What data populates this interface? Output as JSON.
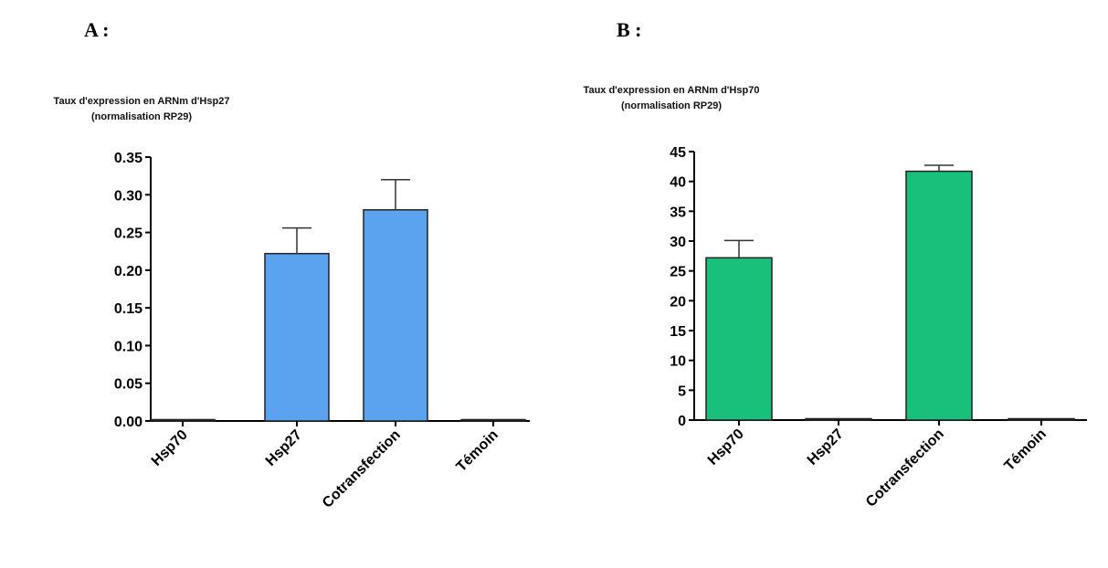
{
  "panels": {
    "a": {
      "letter": "A :",
      "ylabel_line1": "Taux d'expression en ARNm d'Hsp27",
      "ylabel_line2": "(normalisation RP29)"
    },
    "b": {
      "letter": "B :",
      "ylabel_line1": "Taux d'expression en ARNm d'Hsp70",
      "ylabel_line2": "(normalisation RP29)"
    }
  },
  "chart_data": [
    {
      "type": "bar",
      "categories": [
        "Hsp70",
        "Hsp27",
        "Cotransfection",
        "Témoin"
      ],
      "values": [
        0.0,
        0.222,
        0.28,
        0.001
      ],
      "errors": [
        0.0,
        0.034,
        0.04,
        0.0
      ],
      "ylim": [
        0,
        0.35
      ],
      "yticks": [
        "0.00",
        "0.05",
        "0.10",
        "0.15",
        "0.20",
        "0.25",
        "0.30",
        "0.35"
      ],
      "ylabel": "Taux d'expression en ARNm d'Hsp27 (normalisation RP29)",
      "bar_color": "#5ba3ef"
    },
    {
      "type": "bar",
      "categories": [
        "Hsp70",
        "Hsp27",
        "Cotransfection",
        "Témoin"
      ],
      "values": [
        27.2,
        0.0,
        41.7,
        0.0
      ],
      "errors": [
        2.9,
        0.0,
        1.0,
        0.0
      ],
      "ylim": [
        0,
        45
      ],
      "yticks": [
        "0",
        "5",
        "10",
        "15",
        "20",
        "25",
        "30",
        "35",
        "40",
        "45"
      ],
      "ylabel": "Taux d'expression en ARNm d'Hsp70 (normalisation RP29)",
      "bar_color": "#19c07c"
    }
  ]
}
